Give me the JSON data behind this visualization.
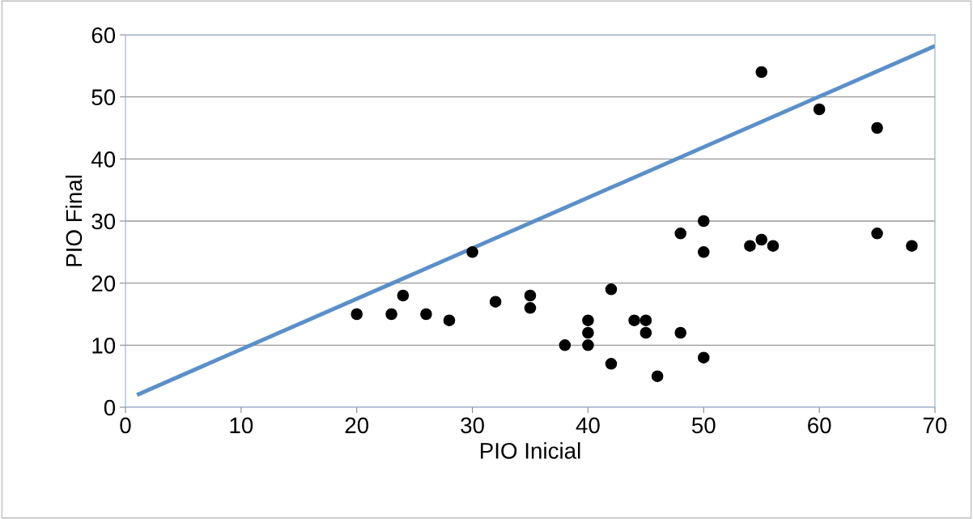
{
  "chart_data": {
    "type": "scatter",
    "xlabel": "PIO Inicial",
    "ylabel": "PIO Final",
    "xlim": [
      0,
      70
    ],
    "xticks": [
      0,
      10,
      20,
      30,
      40,
      50,
      60,
      70
    ],
    "ylim": [
      0,
      60
    ],
    "yticks": [
      0,
      10,
      20,
      30,
      40,
      50,
      60
    ],
    "grid": "y",
    "legend": false,
    "series": [
      {
        "color": "#000000",
        "marker": "circle",
        "x": [
          20,
          23,
          24,
          26,
          28,
          30,
          32,
          35,
          35,
          38,
          40,
          40,
          40,
          42,
          42,
          44,
          45,
          45,
          46,
          48,
          48,
          50,
          50,
          50,
          54,
          55,
          55,
          56,
          60,
          65,
          65,
          68
        ],
        "values": [
          15,
          15,
          18,
          15,
          14,
          25,
          17,
          18,
          16,
          10,
          14,
          12,
          10,
          19,
          7,
          14,
          14,
          12,
          5,
          28,
          12,
          30,
          25,
          8,
          26,
          54,
          27,
          26,
          48,
          45,
          28,
          26
        ]
      },
      {
        "type": "line",
        "color": "#5b8fc9",
        "marker": "none",
        "line_style": "solid",
        "x": [
          1,
          70
        ],
        "values": [
          2,
          58.2
        ]
      }
    ]
  }
}
